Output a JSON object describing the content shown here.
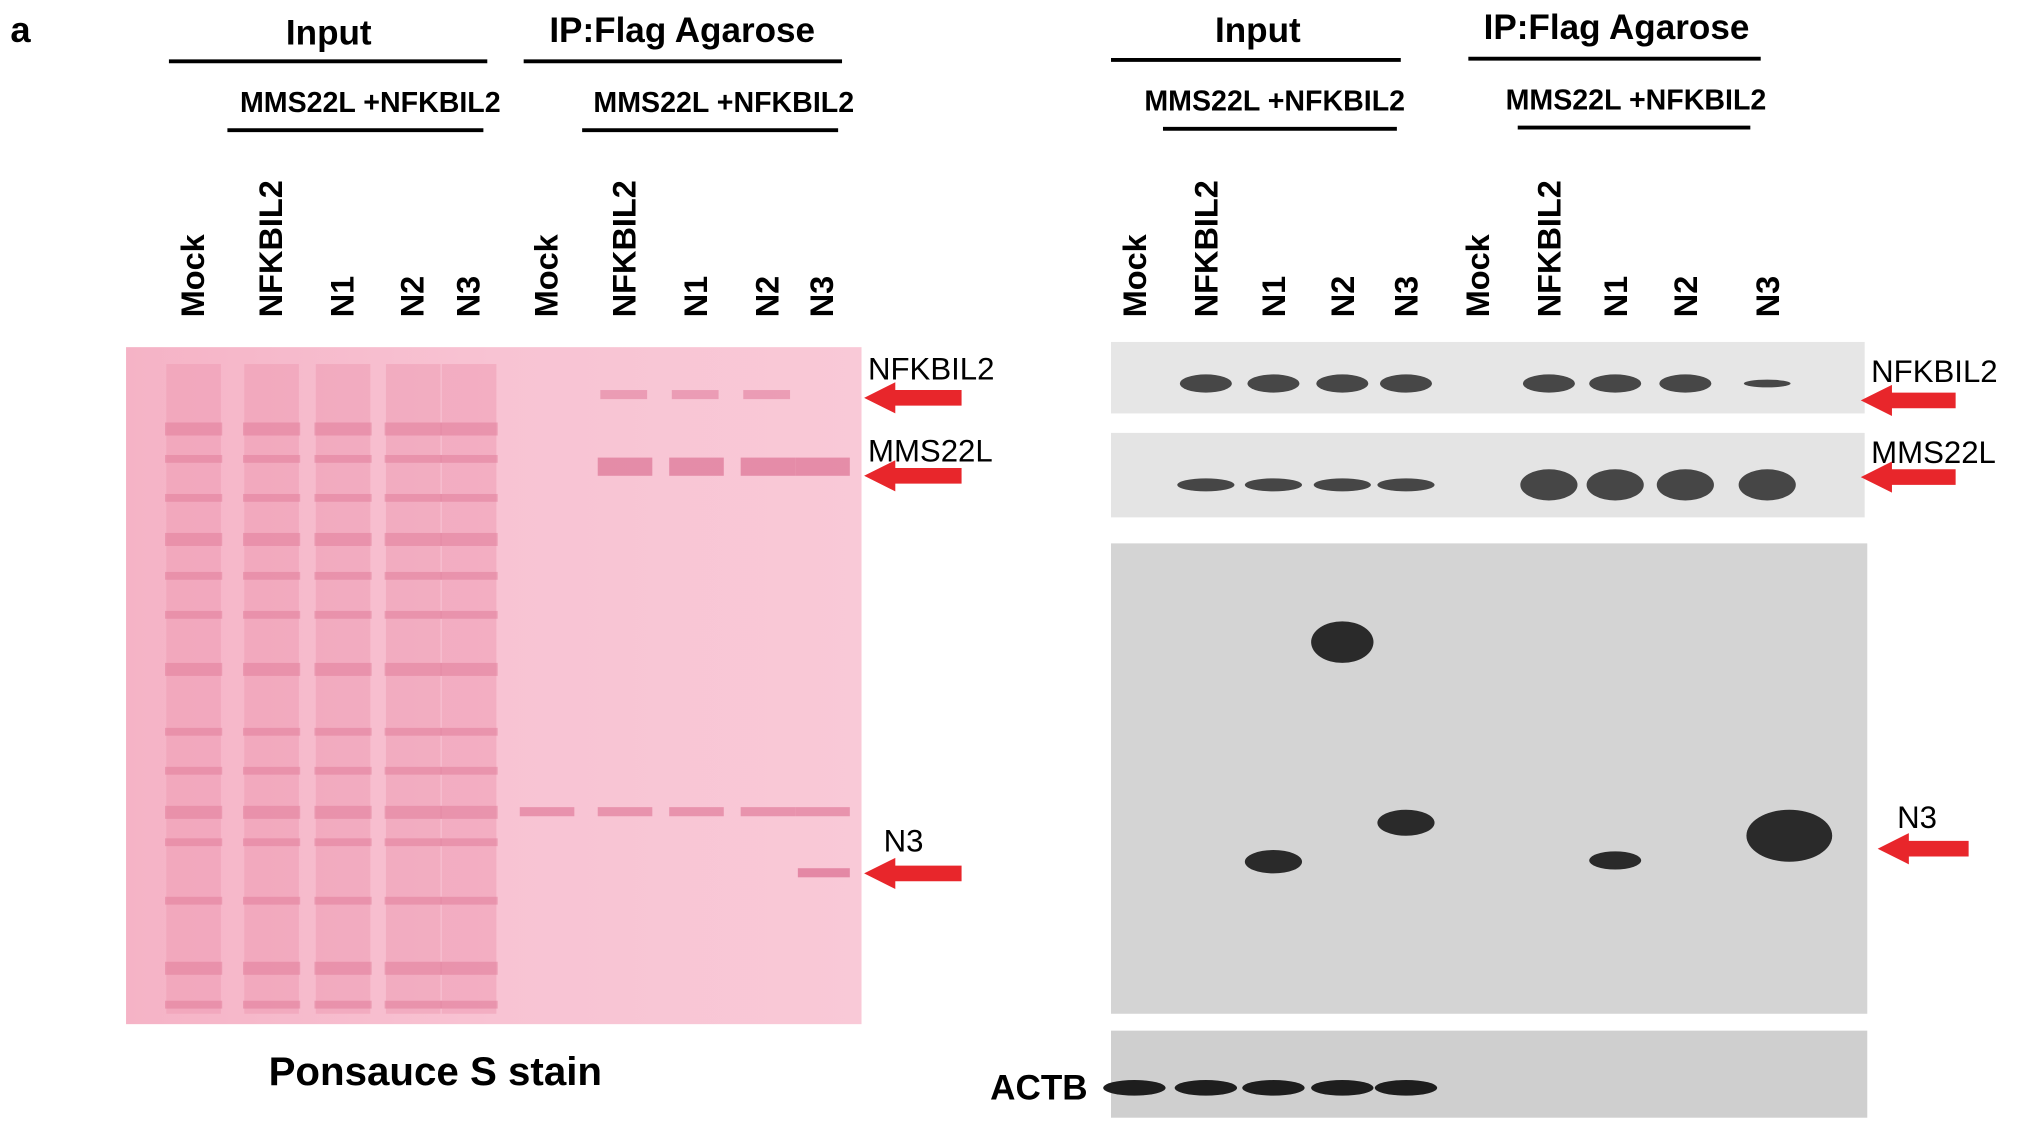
{
  "panel_label": "a",
  "left": {
    "groups": [
      {
        "title": "Input",
        "subtitle": "MMS22L +NFKBIL2",
        "lanes": [
          "Mock",
          "NFKBIL2",
          "N1",
          "N2",
          "N3"
        ]
      },
      {
        "title": "IP:Flag Agarose",
        "subtitle": "MMS22L +NFKBIL2",
        "lanes": [
          "Mock",
          "NFKBIL2",
          "N1",
          "N2",
          "N3"
        ]
      }
    ],
    "markers": [
      "NFKBIL2",
      "MMS22L",
      "N3"
    ],
    "caption": "Ponsauce S stain"
  },
  "right": {
    "groups": [
      {
        "title": "Input",
        "subtitle": "MMS22L +NFKBIL2",
        "lanes": [
          "Mock",
          "NFKBIL2",
          "N1",
          "N2",
          "N3"
        ]
      },
      {
        "title": "IP:Flag Agarose",
        "subtitle": "MMS22L +NFKBIL2",
        "lanes": [
          "Mock",
          "NFKBIL2",
          "N1",
          "N2",
          "N3"
        ]
      }
    ],
    "markers": [
      "NFKBIL2",
      "MMS22L",
      "N3"
    ],
    "loading_control": "ACTB"
  }
}
